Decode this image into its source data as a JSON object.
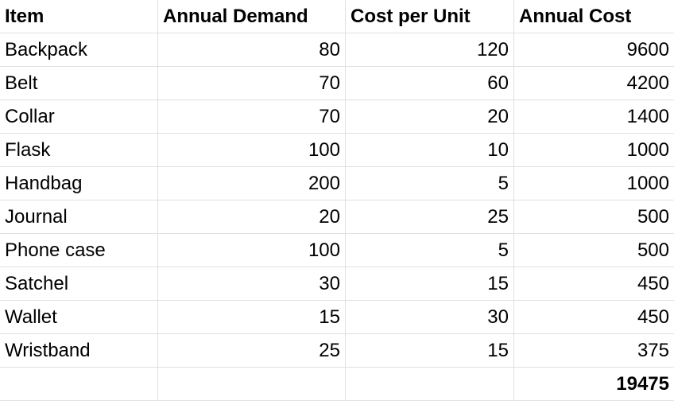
{
  "headers": [
    "Item",
    "Annual Demand",
    "Cost per Unit",
    "Annual Cost"
  ],
  "rows": [
    {
      "item": "Backpack",
      "demand": "80",
      "cost": "120",
      "annual": "9600"
    },
    {
      "item": "Belt",
      "demand": "70",
      "cost": "60",
      "annual": "4200"
    },
    {
      "item": "Collar",
      "demand": "70",
      "cost": "20",
      "annual": "1400"
    },
    {
      "item": "Flask",
      "demand": "100",
      "cost": "10",
      "annual": "1000"
    },
    {
      "item": "Handbag",
      "demand": "200",
      "cost": "5",
      "annual": "1000"
    },
    {
      "item": "Journal",
      "demand": "20",
      "cost": "25",
      "annual": "500"
    },
    {
      "item": "Phone case",
      "demand": "100",
      "cost": "5",
      "annual": "500"
    },
    {
      "item": "Satchel",
      "demand": "30",
      "cost": "15",
      "annual": "450"
    },
    {
      "item": "Wallet",
      "demand": "15",
      "cost": "30",
      "annual": "450"
    },
    {
      "item": "Wristband",
      "demand": "25",
      "cost": "15",
      "annual": "375"
    }
  ],
  "total": "19475",
  "colors": {
    "gridline": "#e0e0e0",
    "text": "#000000",
    "background": "#ffffff"
  }
}
